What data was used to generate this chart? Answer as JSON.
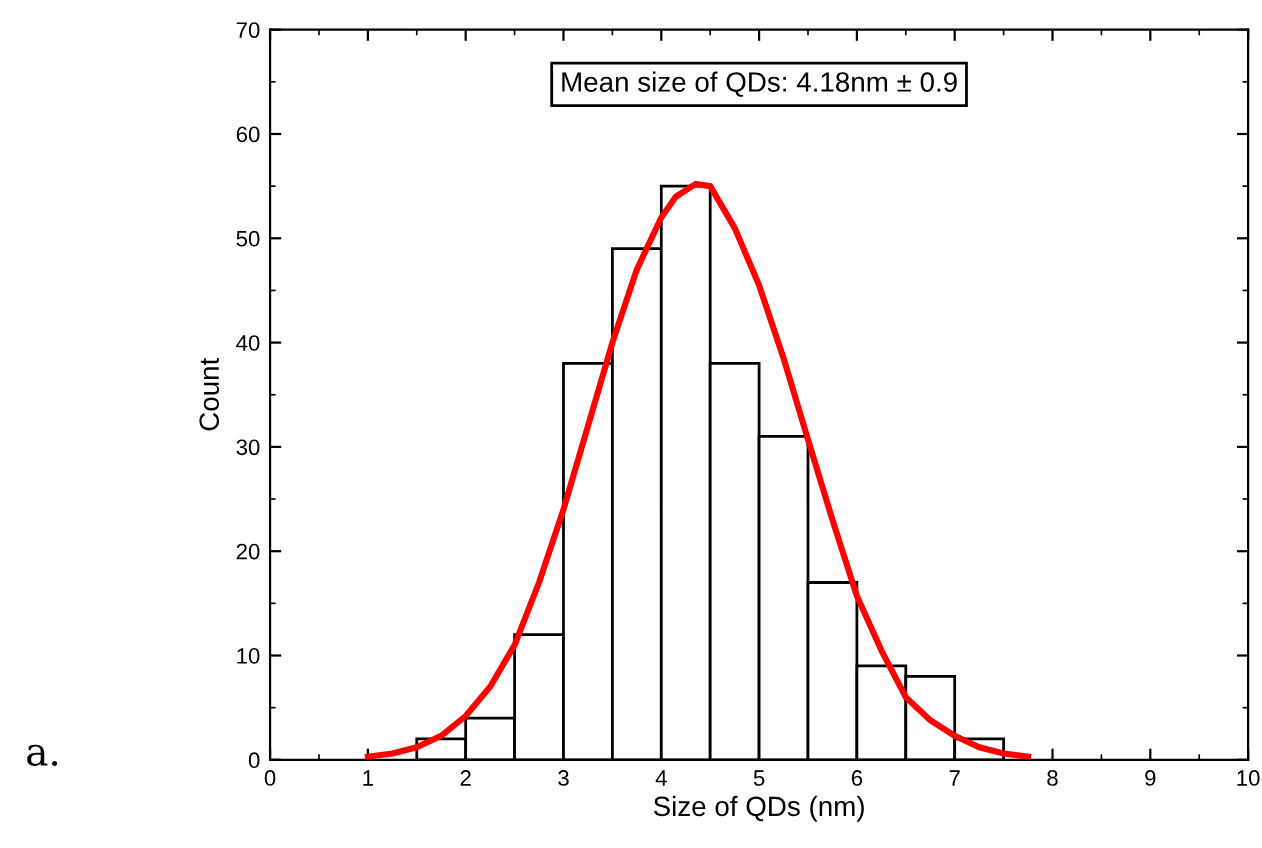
{
  "chart_data": {
    "type": "histogram",
    "xlabel": "Size of QDs (nm)",
    "ylabel": "Count",
    "bins": [
      1.5,
      2,
      2.5,
      3,
      3.5,
      4,
      4.5,
      5,
      5.5,
      6,
      6.5,
      7,
      7.5
    ],
    "series": [
      {
        "color": "#ffffff",
        "values": [
          2,
          4,
          12,
          38,
          49,
          55,
          38,
          31,
          17,
          9,
          8,
          2
        ]
      },
      {
        "type": "line",
        "color": "#ff0000",
        "x": [
          1,
          1.25,
          1.5,
          1.75,
          2,
          2.25,
          2.5,
          2.75,
          3,
          3.25,
          3.5,
          3.75,
          4,
          4.15,
          4.35,
          4.5,
          4.75,
          5,
          5.25,
          5.5,
          5.75,
          6,
          6.25,
          6.5,
          6.75,
          7,
          7.25,
          7.5,
          7.75
        ],
        "values": [
          0.3,
          0.6,
          1.2,
          2.3,
          4.2,
          7,
          11,
          17,
          24,
          32,
          40,
          47,
          52,
          54,
          55.2,
          55,
          51,
          45.5,
          38.5,
          30.7,
          23,
          15.7,
          10.5,
          6,
          3.8,
          2.3,
          1.2,
          0.6,
          0.3
        ]
      }
    ],
    "xlim": [
      0,
      10
    ],
    "xticks": [
      0,
      1,
      2,
      3,
      4,
      5,
      6,
      7,
      8,
      9,
      10
    ],
    "ylim": [
      0,
      70
    ],
    "yticks": [
      0,
      10,
      20,
      30,
      40,
      50,
      60,
      70
    ],
    "grid": false,
    "legend": false,
    "annotations": [
      "Mean size of QDs: 4.18nm ± 0.9",
      "a."
    ]
  }
}
